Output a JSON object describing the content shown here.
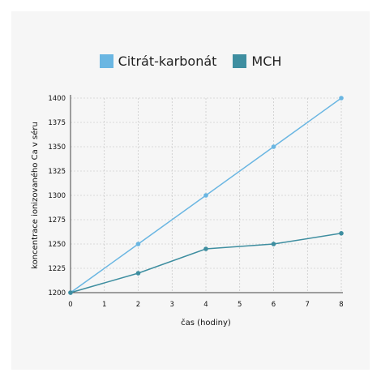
{
  "chart_data": {
    "type": "line",
    "x": [
      0,
      2,
      4,
      6,
      8
    ],
    "series": [
      {
        "name": "Citrát-karbonát",
        "color": "#6ab6e2",
        "values": [
          1200,
          1250,
          1300,
          1350,
          1400
        ]
      },
      {
        "name": "MCH",
        "color": "#3e8ea0",
        "values": [
          1200,
          1220,
          1245,
          1250,
          1261
        ]
      }
    ],
    "xlabel": "čas (hodiny)",
    "ylabel": "koncentrace ionizovaného Ca v séru",
    "xlim": [
      0,
      8
    ],
    "ylim": [
      1200,
      1400
    ],
    "xticks": [
      "0",
      "1",
      "2",
      "3",
      "4",
      "5",
      "6",
      "7",
      "8"
    ],
    "yticks": [
      "1200",
      "1225",
      "1250",
      "1275",
      "1300",
      "1325",
      "1350",
      "1375",
      "1400"
    ],
    "grid": true,
    "legend_position": "top-center"
  }
}
